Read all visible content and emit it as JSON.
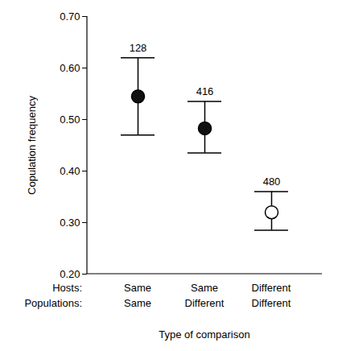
{
  "chart_data": {
    "type": "scatter",
    "y_label": "Copulation frequency",
    "x_label": "Type of comparison",
    "category_rows": [
      "Hosts:",
      "Populations:"
    ],
    "categories": [
      [
        "Same",
        "Same"
      ],
      [
        "Same",
        "Different"
      ],
      [
        "Different",
        "Different"
      ]
    ],
    "values": [
      0.545,
      0.483,
      0.32
    ],
    "error_low": [
      0.47,
      0.435,
      0.285
    ],
    "error_high": [
      0.62,
      0.535,
      0.36
    ],
    "sample_sizes": [
      128,
      416,
      480
    ],
    "colors": [
      "#111111",
      "#111111",
      "#ffffff"
    ],
    "ylim": [
      0.2,
      0.7
    ],
    "yticks": [
      {
        "value": 0.2,
        "label": "0.20"
      },
      {
        "value": 0.3,
        "label": "0.30"
      },
      {
        "value": 0.4,
        "label": "0.40"
      },
      {
        "value": 0.5,
        "label": "0.50"
      },
      {
        "value": 0.6,
        "label": "0.60"
      },
      {
        "value": 0.7,
        "label": "0.70"
      }
    ]
  }
}
